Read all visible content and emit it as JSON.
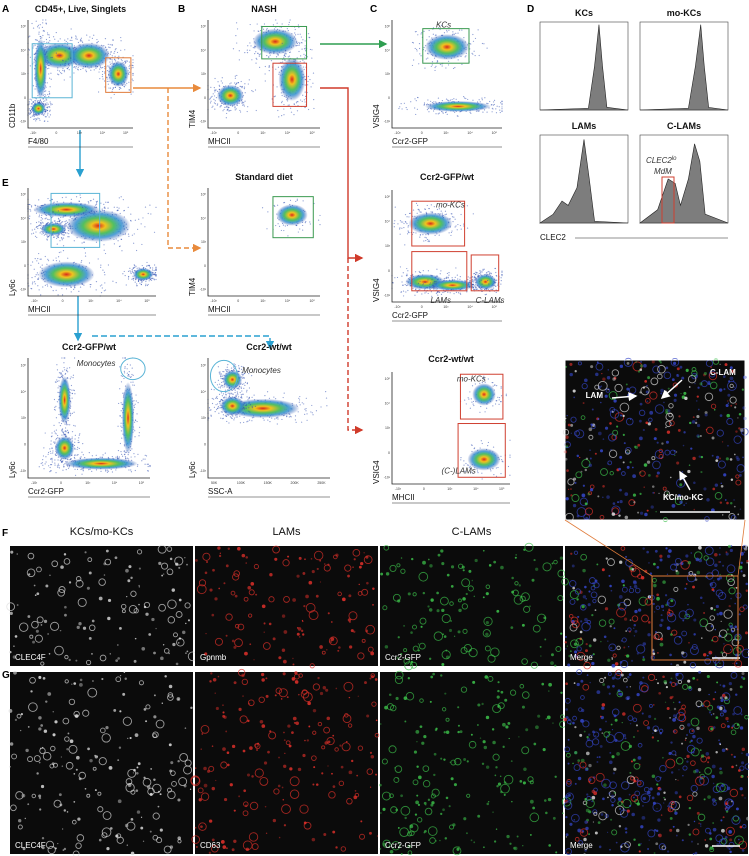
{
  "panel_letters": [
    "A",
    "B",
    "C",
    "D",
    "E",
    "F",
    "G"
  ],
  "log_ticks": [
    "-10³",
    "0",
    "10³",
    "10⁴",
    "10⁵"
  ],
  "linear_ticks": [
    "50K",
    "100K",
    "150K",
    "200K",
    "250K"
  ],
  "flow_plots": [
    {
      "title": "CD45+, Live, Singlets",
      "x_label": "F4/80",
      "y_label": "CD11b"
    },
    {
      "title": "NASH",
      "x_label": "MHCII",
      "y_label": "TIM4"
    },
    {
      "x_label": "Ccr2-GFP",
      "y_label": "VSIG4",
      "gate_labels": [
        "KCs"
      ]
    },
    {
      "x_label": "MHCII",
      "y_label": "Ly6c"
    },
    {
      "title": "Standard diet",
      "x_label": "MHCII",
      "y_label": "TIM4"
    },
    {
      "title": "Ccr2-GFP/wt",
      "x_label": "Ccr2-GFP",
      "y_label": "VSIG4",
      "gate_labels": [
        "mo-KCs",
        "LAMs",
        "C-LAMs"
      ]
    },
    {
      "title": "Ccr2-GFP/wt",
      "x_label": "Ccr2-GFP",
      "y_label": "Ly6c",
      "gate_labels": [
        "Monocytes"
      ]
    },
    {
      "title": "Ccr2-wt/wt",
      "x_label": "SSC-A",
      "y_label": "Ly6c",
      "gate_labels": [
        "Monocytes"
      ]
    },
    {
      "title": "Ccr2-wt/wt",
      "x_label": "MHCII",
      "y_label": "VSIG4",
      "gate_labels": [
        "mo-KCs",
        "(C-)LAMs"
      ]
    }
  ],
  "histograms": {
    "titles": [
      "KCs",
      "mo-KCs",
      "LAMs",
      "C-LAMs"
    ],
    "x_label": "CLEC2",
    "gate_label": {
      "main": "CLEC2",
      "sup": "lo",
      "line2": "MdM"
    }
  },
  "inset": {
    "labels": [
      "C-LAM",
      "LAM",
      "KC/mo-KC"
    ]
  },
  "micrographs": {
    "column_titles": [
      "KCs/mo-KCs",
      "LAMs",
      "C-LAMs"
    ],
    "rows": [
      {
        "labels": [
          "CLEC4F",
          "Gpnmb",
          "Ccr2-GFP",
          "Merge"
        ]
      },
      {
        "labels": [
          "CLEC4F",
          "CD63",
          "Ccr2-GFP",
          "Merge"
        ]
      }
    ]
  }
}
